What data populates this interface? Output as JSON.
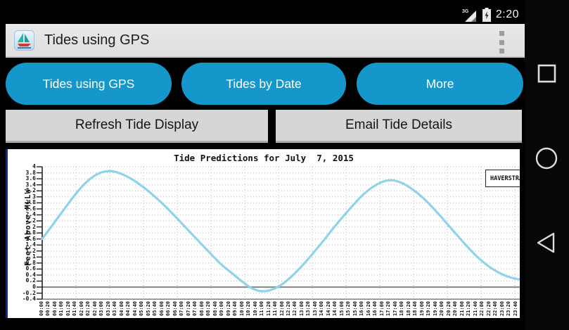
{
  "status_bar": {
    "time": "2:20",
    "network": "3G",
    "icons": [
      "signal-icon",
      "battery-charging-icon"
    ]
  },
  "action_bar": {
    "title": "Tides using GPS",
    "app_icon": "sailboat-app-icon",
    "overflow_icon": "overflow-menu-icon"
  },
  "nav_buttons": [
    {
      "label": "Tides using GPS"
    },
    {
      "label": "Tides by Date"
    },
    {
      "label": "More"
    }
  ],
  "action_buttons": [
    {
      "label": "Refresh Tide Display"
    },
    {
      "label": "Email Tide Details"
    }
  ],
  "android_nav": {
    "recents": "recents-square-icon",
    "home": "home-circle-icon",
    "back": "back-triangle-icon"
  },
  "colors": {
    "accent_blue": "#1697cb",
    "button_gray": "#d6d6d6",
    "curve_blue": "#8fd2ec",
    "panel_border_navy": "#1c2a72",
    "grid_gray": "#b8b8b8",
    "zero_line_gray": "#8f8f8f"
  },
  "chart_data": {
    "type": "line",
    "title": "Tide Predictions for July  7, 2015",
    "xlabel": "",
    "ylabel": "Feet Above MLLW",
    "ylim": [
      -0.4,
      4.0
    ],
    "y_tick_step": 0.2,
    "grid": "dotted",
    "y_tick_labels": [
      "4",
      "3.8",
      "3.6",
      "3.4",
      "3.2",
      "3",
      "2.8",
      "2.6",
      "2.4",
      "2.2",
      "2",
      "1.8",
      "1.6",
      "1.4",
      "1.2",
      "1",
      "0.8",
      "0.6",
      "0.4",
      "0.2",
      "0",
      "-0.2",
      "-0.4"
    ],
    "x_tick_labels": [
      "00:00",
      "00:20",
      "00:40",
      "01:00",
      "01:20",
      "01:40",
      "02:00",
      "02:20",
      "02:40",
      "03:00",
      "03:20",
      "03:40",
      "04:00",
      "04:20",
      "04:40",
      "05:00",
      "05:20",
      "05:40",
      "06:00",
      "06:20",
      "06:40",
      "07:00",
      "07:20",
      "07:40",
      "08:00",
      "08:20",
      "08:40",
      "09:00",
      "09:20",
      "09:40",
      "10:00",
      "10:20",
      "10:40",
      "11:00",
      "11:20",
      "11:40",
      "12:00",
      "12:20",
      "12:40",
      "13:00",
      "13:20",
      "13:40",
      "14:00",
      "14:20",
      "14:40",
      "15:00",
      "15:20",
      "15:40",
      "16:00",
      "16:20",
      "16:40",
      "17:00",
      "17:20",
      "17:40",
      "18:00",
      "18:20",
      "18:40",
      "19:00",
      "19:20",
      "19:40",
      "20:00",
      "20:20",
      "20:40",
      "21:00",
      "21:20",
      "21:40",
      "22:00",
      "22:20",
      "22:40",
      "23:00",
      "23:20",
      "23:40"
    ],
    "legend": {
      "label": "HAVERSTRA",
      "position": "top-right",
      "clipped": true
    },
    "series": [
      {
        "name": "HAVERSTRA",
        "x_hours": [
          0,
          0.5,
          1,
          1.5,
          2,
          2.5,
          3,
          3.5,
          4,
          4.5,
          5,
          5.5,
          6,
          6.5,
          7,
          7.5,
          8,
          8.5,
          9,
          9.5,
          10,
          10.5,
          11,
          11.5,
          12,
          12.5,
          13,
          13.5,
          14,
          14.5,
          15,
          15.5,
          16,
          16.5,
          17,
          17.5,
          18,
          18.5,
          19,
          19.5,
          20,
          20.5,
          21,
          21.5,
          22,
          22.5,
          23,
          23.5,
          24
        ],
        "values": [
          1.6,
          2.05,
          2.5,
          2.95,
          3.35,
          3.65,
          3.82,
          3.85,
          3.75,
          3.58,
          3.35,
          3.08,
          2.78,
          2.45,
          2.1,
          1.75,
          1.4,
          1.05,
          0.72,
          0.45,
          0.18,
          -0.05,
          -0.14,
          -0.08,
          0.1,
          0.38,
          0.72,
          1.1,
          1.5,
          1.92,
          2.32,
          2.7,
          3.05,
          3.32,
          3.5,
          3.55,
          3.45,
          3.25,
          2.98,
          2.65,
          2.28,
          1.9,
          1.52,
          1.16,
          0.85,
          0.6,
          0.42,
          0.3,
          0.24
        ]
      }
    ]
  }
}
